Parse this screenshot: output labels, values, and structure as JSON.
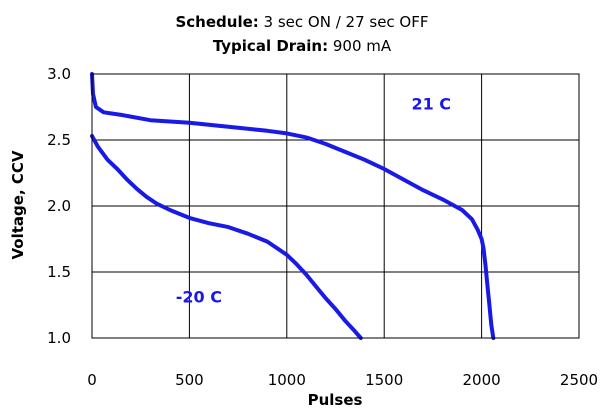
{
  "chart_data": {
    "type": "line",
    "title_lines": [
      {
        "bold": "Schedule:",
        "rest": " 3 sec ON / 27 sec OFF"
      },
      {
        "bold": "Typical Drain:",
        "rest": " 900 mA"
      }
    ],
    "xlabel": "Pulses",
    "ylabel": "Voltage, CCV",
    "xlim": [
      0,
      2500
    ],
    "ylim": [
      1.0,
      3.0
    ],
    "x_ticks": [
      0,
      500,
      1000,
      1500,
      2000,
      2500
    ],
    "x_tick_labels": [
      "0",
      "500",
      "1000",
      "1500",
      "2000",
      "2500"
    ],
    "y_ticks": [
      1.0,
      1.5,
      2.0,
      2.5,
      3.0
    ],
    "y_tick_labels": [
      "1.0",
      "1.5",
      "2.0",
      "2.5",
      "3.0"
    ],
    "grid": true,
    "legend": "none",
    "line_color": "#1a1ae6",
    "series": [
      {
        "name": "21 C",
        "label_at": [
          1640,
          2.73
        ],
        "points": [
          [
            0,
            3.0
          ],
          [
            5,
            2.85
          ],
          [
            20,
            2.75
          ],
          [
            60,
            2.71
          ],
          [
            150,
            2.69
          ],
          [
            300,
            2.65
          ],
          [
            500,
            2.63
          ],
          [
            700,
            2.6
          ],
          [
            900,
            2.57
          ],
          [
            1000,
            2.55
          ],
          [
            1100,
            2.52
          ],
          [
            1200,
            2.47
          ],
          [
            1300,
            2.41
          ],
          [
            1400,
            2.35
          ],
          [
            1500,
            2.28
          ],
          [
            1600,
            2.2
          ],
          [
            1700,
            2.12
          ],
          [
            1800,
            2.05
          ],
          [
            1900,
            1.97
          ],
          [
            1950,
            1.9
          ],
          [
            1980,
            1.82
          ],
          [
            2000,
            1.75
          ],
          [
            2010,
            1.68
          ],
          [
            2020,
            1.55
          ],
          [
            2030,
            1.4
          ],
          [
            2040,
            1.25
          ],
          [
            2050,
            1.1
          ],
          [
            2060,
            1.0
          ]
        ]
      },
      {
        "name": "-20 C",
        "label_at": [
          430,
          1.27
        ],
        "points": [
          [
            0,
            2.53
          ],
          [
            30,
            2.45
          ],
          [
            80,
            2.35
          ],
          [
            130,
            2.28
          ],
          [
            180,
            2.2
          ],
          [
            230,
            2.13
          ],
          [
            280,
            2.07
          ],
          [
            330,
            2.02
          ],
          [
            400,
            1.97
          ],
          [
            500,
            1.91
          ],
          [
            600,
            1.87
          ],
          [
            700,
            1.84
          ],
          [
            800,
            1.79
          ],
          [
            900,
            1.73
          ],
          [
            1000,
            1.63
          ],
          [
            1050,
            1.56
          ],
          [
            1100,
            1.48
          ],
          [
            1150,
            1.39
          ],
          [
            1200,
            1.3
          ],
          [
            1250,
            1.22
          ],
          [
            1300,
            1.13
          ],
          [
            1350,
            1.05
          ],
          [
            1380,
            1.0
          ]
        ]
      }
    ]
  }
}
